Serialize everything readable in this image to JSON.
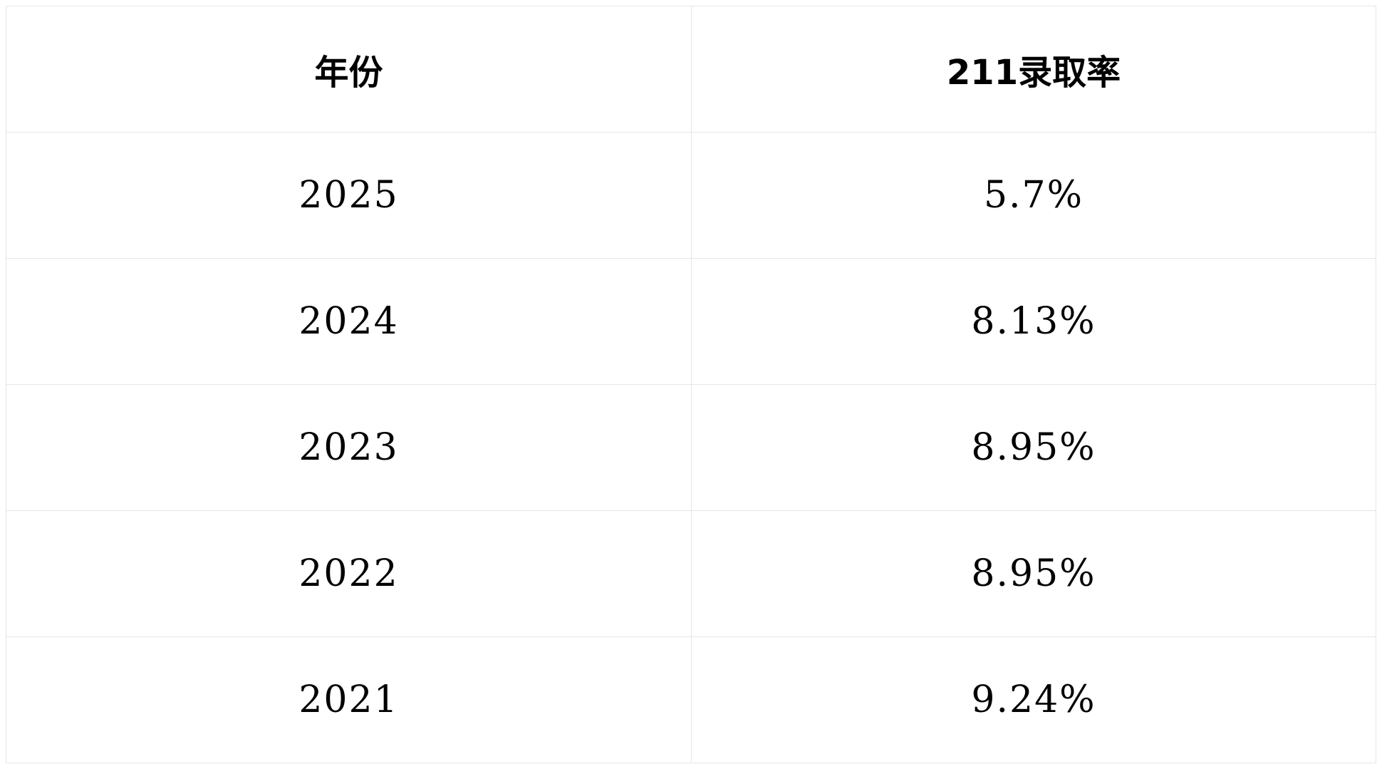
{
  "table": {
    "headers": [
      "年份",
      "211录取率"
    ],
    "rows": [
      [
        "2025",
        "5.7%"
      ],
      [
        "2024",
        "8.13%"
      ],
      [
        "2023",
        "8.95%"
      ],
      [
        "2022",
        "8.95%"
      ],
      [
        "2021",
        "9.24%"
      ]
    ]
  }
}
